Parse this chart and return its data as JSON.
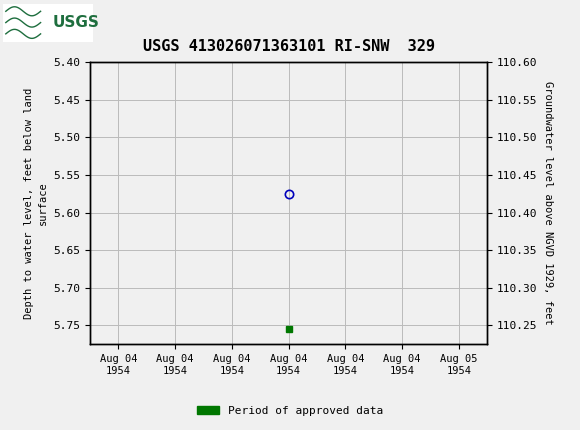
{
  "title": "USGS 413026071363101 RI-SNW  329",
  "title_fontsize": 11,
  "ylabel_left": "Depth to water level, feet below land\nsurface",
  "ylabel_right": "Groundwater level above NGVD 1929, feet",
  "ylim_left": [
    5.4,
    5.775
  ],
  "ylim_right": [
    110.225,
    110.6
  ],
  "left_yticks": [
    5.4,
    5.45,
    5.5,
    5.55,
    5.6,
    5.65,
    5.7,
    5.75
  ],
  "right_yticks": [
    110.6,
    110.55,
    110.5,
    110.45,
    110.4,
    110.35,
    110.3,
    110.25
  ],
  "data_point_x": 3.0,
  "data_point_y": 5.575,
  "data_point_edgecolor": "#0000bb",
  "green_marker_x": 3.0,
  "green_marker_y": 5.755,
  "green_color": "#007700",
  "header_color": "#1e6e3e",
  "background_color": "#f0f0f0",
  "plot_bg_color": "#f0f0f0",
  "grid_color": "#bbbbbb",
  "xtick_labels": [
    "Aug 04\n1954",
    "Aug 04\n1954",
    "Aug 04\n1954",
    "Aug 04\n1954",
    "Aug 04\n1954",
    "Aug 04\n1954",
    "Aug 05\n1954"
  ],
  "xtick_positions": [
    0,
    1,
    2,
    3,
    4,
    5,
    6
  ],
  "legend_label": "Period of approved data",
  "font_family": "DejaVu Sans Mono"
}
